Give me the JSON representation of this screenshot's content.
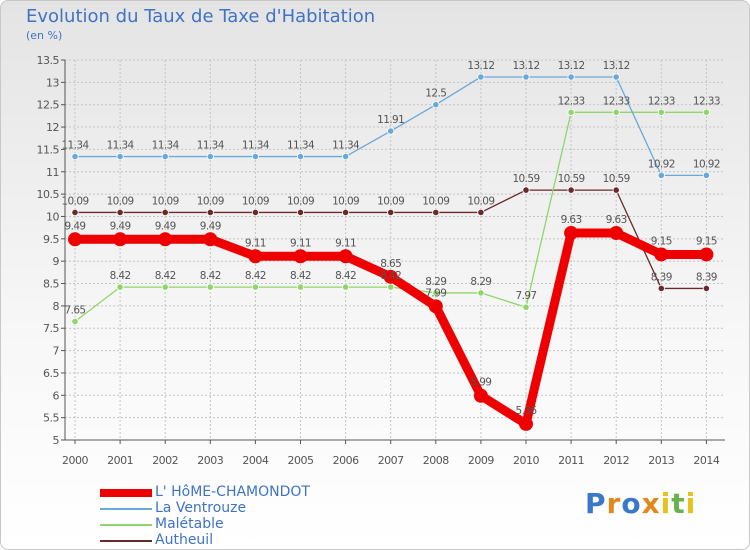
{
  "title": "Evolution du Taux de Taxe d'Habitation",
  "subtitle": "(en %)",
  "brand": "Proxiti",
  "colors": {
    "title": "#3f73c6",
    "grid": "#c4c4c4",
    "axis": "#555555",
    "label": "#555555"
  },
  "chart_data": {
    "type": "line",
    "x": [
      2000,
      2001,
      2002,
      2003,
      2004,
      2005,
      2006,
      2007,
      2008,
      2009,
      2010,
      2011,
      2012,
      2013,
      2014
    ],
    "ylim": [
      5,
      13.5
    ],
    "yticks": [
      5,
      5.5,
      6,
      6.5,
      7,
      7.5,
      8,
      8.5,
      9,
      9.5,
      10,
      10.5,
      11,
      11.5,
      12,
      12.5,
      13,
      13.5
    ],
    "xlabel": "",
    "ylabel": "",
    "grid": true,
    "legend_position": "bottom-left",
    "series": [
      {
        "name": "Autheuil",
        "color": "#6b2a2a",
        "style": "thin",
        "values": [
          10.09,
          10.09,
          10.09,
          10.09,
          10.09,
          10.09,
          10.09,
          10.09,
          10.09,
          10.09,
          10.59,
          10.59,
          10.59,
          8.39,
          8.39
        ],
        "labels": [
          "10.09",
          "10.09",
          "10.09",
          "10.09",
          "10.09",
          "10.09",
          "10.09",
          "10.09",
          "10.09",
          "10.09",
          "10.59",
          "10.59",
          "10.59",
          "8.39",
          "8.39"
        ]
      },
      {
        "name": "Malétable",
        "color": "#8fd66a",
        "style": "thin",
        "values": [
          7.65,
          8.42,
          8.42,
          8.42,
          8.42,
          8.42,
          8.42,
          8.42,
          8.29,
          8.29,
          7.97,
          12.33,
          12.33,
          12.33,
          12.33
        ],
        "labels": [
          "7.65",
          "8.42",
          "8.42",
          "8.42",
          "8.42",
          "8.42",
          "8.42",
          "8.42",
          "8.29",
          "8.29",
          "7.97",
          "12.33",
          "12.33",
          "12.33",
          "12.33"
        ]
      },
      {
        "name": "La Ventrouze",
        "color": "#6aa8d8",
        "style": "thin",
        "values": [
          11.34,
          11.34,
          11.34,
          11.34,
          11.34,
          11.34,
          11.34,
          11.91,
          12.5,
          13.12,
          13.12,
          13.12,
          13.12,
          10.92,
          10.92
        ],
        "labels": [
          "11.34",
          "11.34",
          "11.34",
          "11.34",
          "11.34",
          "11.34",
          "11.34",
          "11.91",
          "12.5",
          "13.12",
          "13.12",
          "13.12",
          "13.12",
          "10.92",
          "10.92"
        ]
      },
      {
        "name": "L' HôME-CHAMONDOT",
        "color": "#ee0000",
        "style": "thick",
        "values": [
          9.49,
          9.49,
          9.49,
          9.49,
          9.11,
          9.11,
          9.11,
          8.65,
          7.99,
          5.99,
          5.36,
          9.63,
          9.63,
          9.15,
          9.15
        ],
        "labels": [
          "9.49",
          "9.49",
          "9.49",
          "9.49",
          "9.11",
          "9.11",
          "9.11",
          "8.65",
          "7.99",
          "5.99",
          "5.36",
          "9.63",
          "9.63",
          "9.15",
          "9.15"
        ]
      }
    ]
  }
}
